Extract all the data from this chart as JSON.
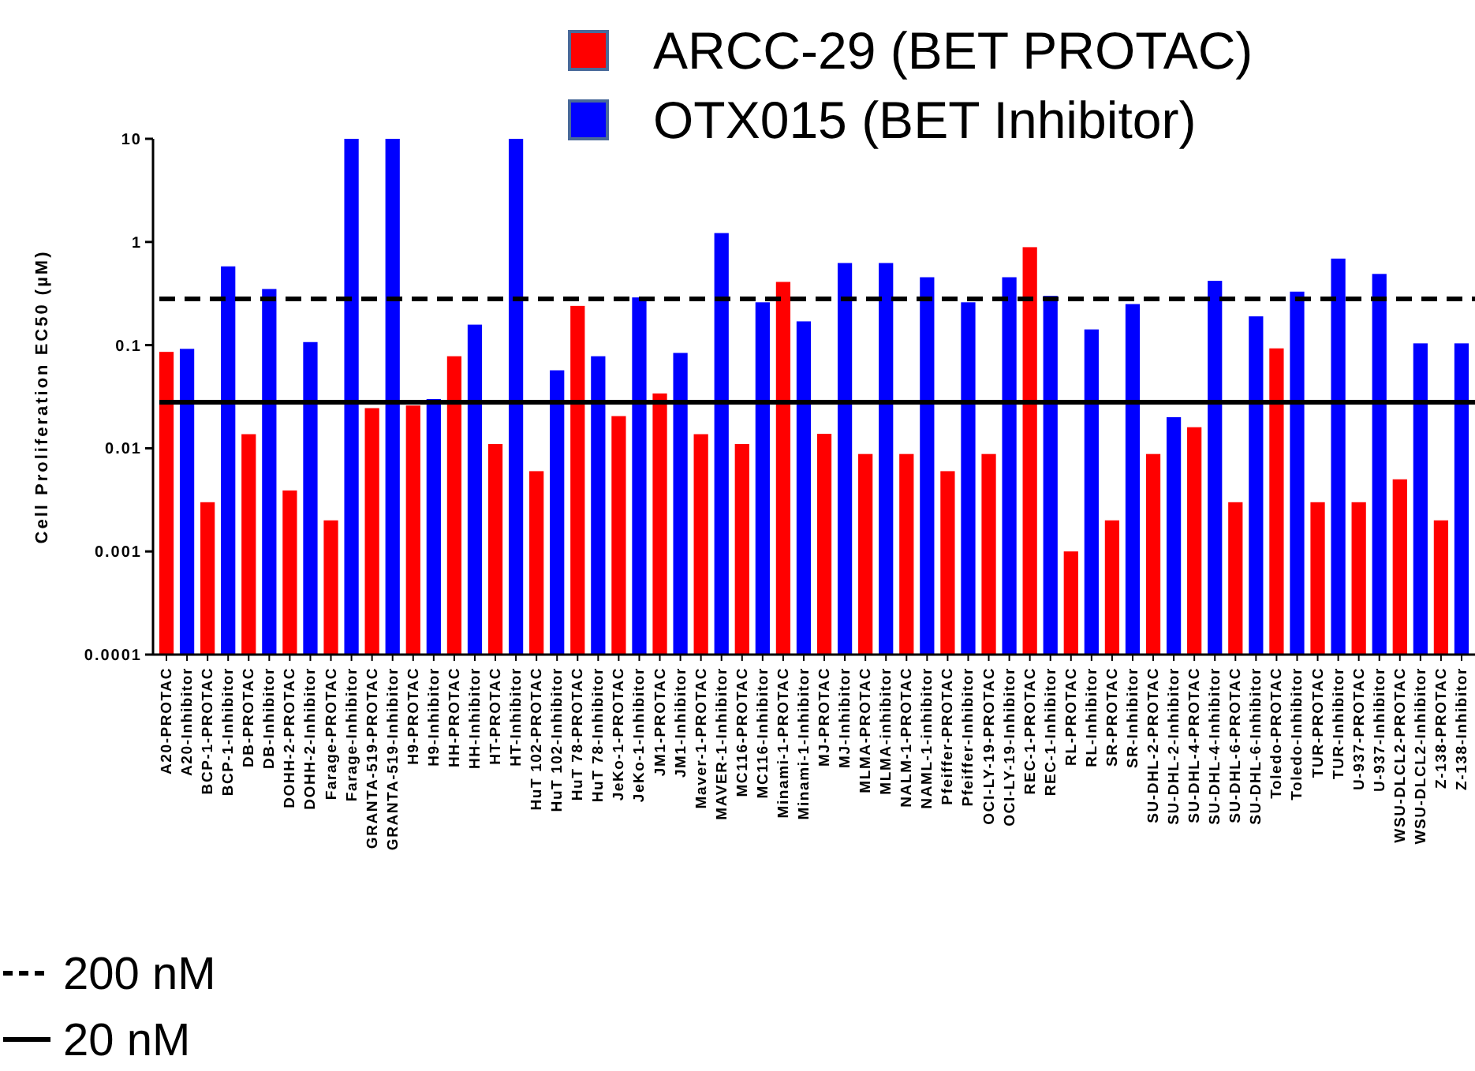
{
  "chart_data": {
    "type": "bar",
    "ylabel": "Cell Proliferation EC50 (µM)",
    "log": true,
    "ylim": [
      0.0001,
      10
    ],
    "yticks": [
      0.0001,
      0.001,
      0.01,
      0.1,
      1,
      10
    ],
    "grid": false,
    "legend": "top right",
    "categories": [
      "A20-PROTAC",
      "A20-Inhibitor",
      "BCP-1-PROTAC",
      "BCP-1-Inhibitor",
      "DB-PROTAC",
      "DB-Inhibitor",
      "DOHH-2-PROTAC",
      "DOHH-2-Inhibitor",
      "Farage-PROTAC",
      "Farage-Inhibitor",
      "GRANTA-519-PROTAC",
      "GRANTA-519-Inhibitor",
      "H9-PROTAC",
      "H9-Inhibitor",
      "HH-PROTAC",
      "HH-Inhibitor",
      "HT-PROTAC",
      "HT-Inhibitor",
      "HuT 102-PROTAC",
      "HuT 102-Inhibitor",
      "HuT 78-PROTAC",
      "HuT 78-Inhibitor",
      "JeKo-1-PROTAC",
      "JeKo-1-Inhibitor",
      "JM1-PROTAC",
      "JM1-Inhibitor",
      "Maver-1-PROTAC",
      "MAVER-1-Inhibitor",
      "MC116-PROTAC",
      "MC116-Inhibitor",
      "Minami-1-PROTAC",
      "Minami-1-Inhibitor",
      "MJ-PROTAC",
      "MJ-Inhibitor",
      "MLMA-PROTAC",
      "MLMA-inhibitor",
      "NALM-1-PROTAC",
      "NAML-1-inhibitor",
      "Pfeiffer-PROTAC",
      "Pfeiffer-Inhibitor",
      "OCI-LY-19-PROTAC",
      "OCI-LY-19-Inhibitor",
      "REC-1-PROTAC",
      "REC-1-Inhibitor",
      "RL-PROTAC",
      "RL-Inhibitor",
      "SR-PROTAC",
      "SR-Inhibitor",
      "SU-DHL-2-PROTAC",
      "SU-DHL-2-Inhibitor",
      "SU-DHL-4-PROTAC",
      "SU-DHL-4-Inhibitor",
      "SU-DHL-6-PROTAC",
      "SU-DHL-6-Inhibitor",
      "Toledo-PROTAC",
      "Toledo-Inhibitor",
      "TUR-PROTAC",
      "TUR-Inhibitor",
      "U-937-PROTAC",
      "U-937-Inhibitor",
      "WSU-DLCL2-PROTAC",
      "WSU-DLCL2-Inhibitor",
      "Z-138-PROTAC",
      "Z-138-Inhibitor"
    ],
    "series": [
      {
        "name": "ARCC-29 (BET PROTAC)",
        "color": "#ff0000",
        "values": [
          0.086,
          null,
          0.003,
          null,
          0.0137,
          null,
          0.0039,
          null,
          0.002,
          null,
          0.0245,
          null,
          0.026,
          null,
          0.078,
          null,
          0.011,
          null,
          0.006,
          null,
          0.24,
          null,
          0.0205,
          null,
          0.034,
          null,
          0.0137,
          null,
          0.011,
          null,
          0.41,
          null,
          0.0138,
          null,
          0.0088,
          null,
          0.0088,
          null,
          0.006,
          null,
          0.0088,
          null,
          0.89,
          null,
          0.001,
          null,
          0.002,
          null,
          0.0088,
          null,
          0.016,
          null,
          0.003,
          null,
          0.093,
          null,
          0.003,
          null,
          0.003,
          null,
          0.005,
          null,
          0.002,
          null
        ]
      },
      {
        "name": "OTX015 (BET Inhibitor)",
        "color": "#0000ff",
        "values": [
          null,
          0.092,
          null,
          0.58,
          null,
          0.35,
          null,
          0.107,
          null,
          10,
          null,
          10,
          null,
          0.03,
          null,
          0.158,
          null,
          10,
          null,
          0.057,
          null,
          0.078,
          null,
          0.29,
          null,
          0.084,
          null,
          1.22,
          null,
          0.26,
          null,
          0.17,
          null,
          0.625,
          null,
          0.625,
          null,
          0.455,
          null,
          0.26,
          null,
          0.455,
          null,
          0.3,
          null,
          0.142,
          null,
          0.25,
          null,
          0.02,
          null,
          0.42,
          null,
          0.19,
          null,
          0.33,
          null,
          0.69,
          null,
          0.49,
          null,
          0.104,
          null,
          0.104
        ]
      }
    ],
    "annotations": [
      "200 nM",
      "20 nM"
    ],
    "ref_lines": [
      {
        "axis": "y",
        "value": 0.28,
        "line_style": "dashed",
        "color": "#000000"
      },
      {
        "axis": "y",
        "value": 0.028,
        "line_style": "solid",
        "color": "#000000"
      }
    ]
  }
}
